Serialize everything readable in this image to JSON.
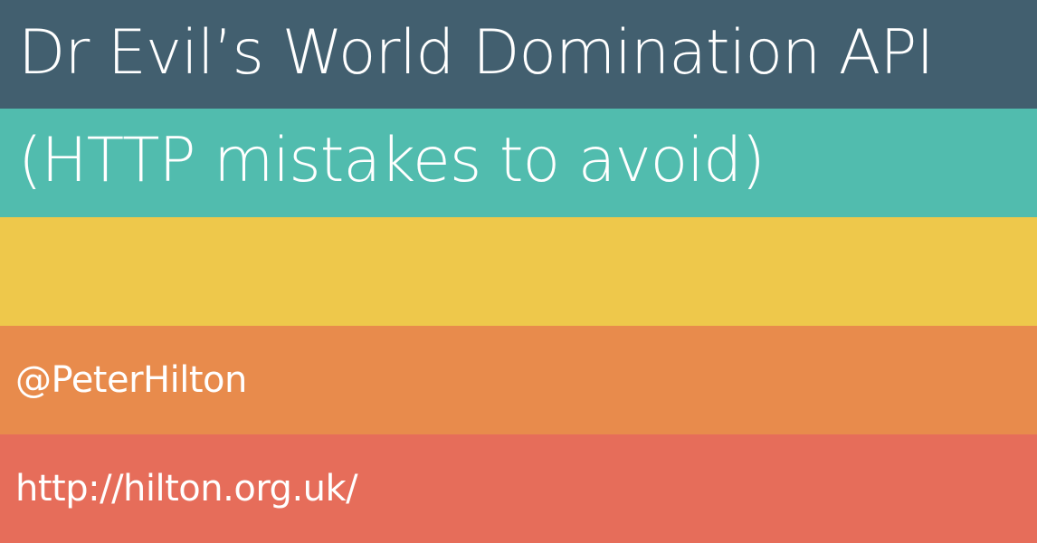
{
  "slide": {
    "title": "Dr Evil’s World Domination API",
    "subtitle": "(HTTP mistakes to avoid)",
    "author_handle": "@PeterHilton",
    "website": "http://hilton.org.uk/"
  },
  "colors": {
    "band1": "#425f6f",
    "band2": "#51bcae",
    "band3": "#eec84b",
    "band4": "#e88b4c",
    "band5": "#e66d5a",
    "text": "#ffffff"
  }
}
